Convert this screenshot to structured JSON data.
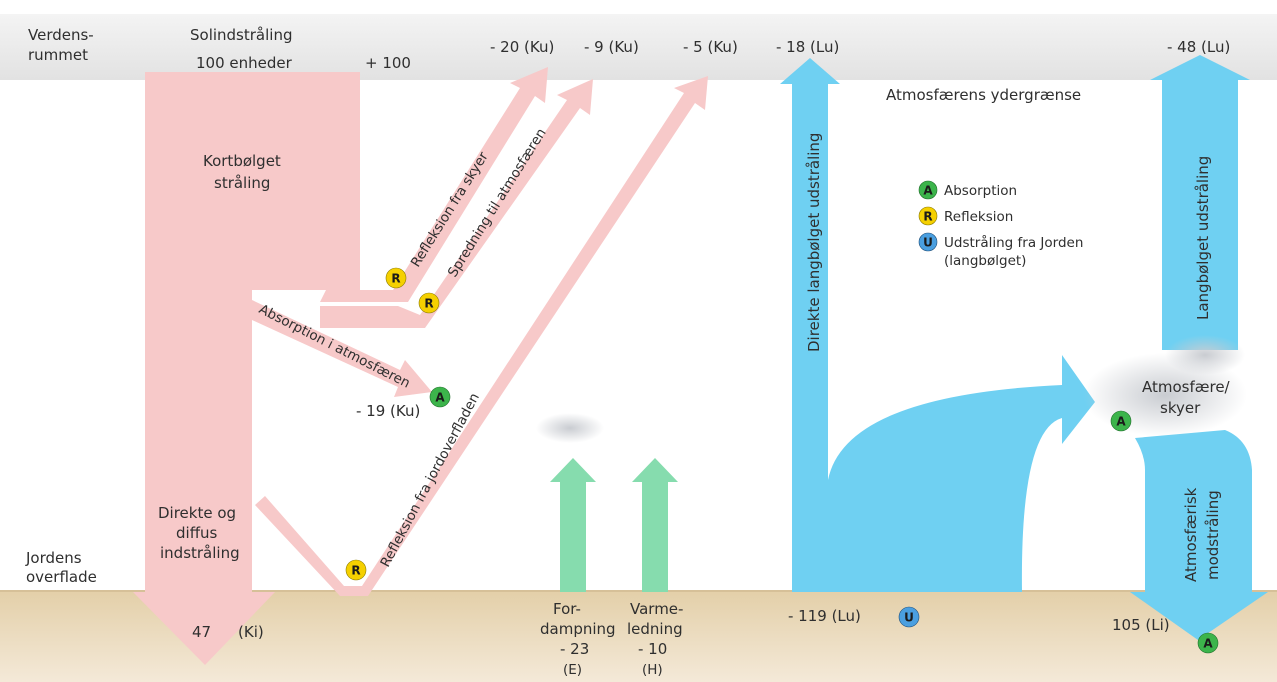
{
  "space_label": [
    "Verdens-",
    "rummet"
  ],
  "solar": {
    "title": "Solindstråling",
    "amount": "100 enheder",
    "plus": "+ 100"
  },
  "top_values": {
    "clouds": "- 20 (Ku)",
    "scatter": "- 9 (Ku)",
    "surface": "- 5 (Ku)",
    "direct_lw": "- 18 (Lu)",
    "atm_lw": "- 48 (Lu)"
  },
  "outer_boundary": "Atmosfærens ydergrænse",
  "shortwave": [
    "Kortbølget",
    "stråling"
  ],
  "direct_diffuse": [
    "Direkte og",
    "diffus",
    "indstråling"
  ],
  "ground_label": [
    "Jordens",
    "overflade"
  ],
  "ground_values": {
    "ki_value": "47",
    "ki_code": "(Ki)",
    "lu_total": "- 119 (Lu)",
    "li_value": "105 (Li)"
  },
  "flow_labels": {
    "cloud_reflection": "Refleksion fra skyer",
    "scattering": "Spredning til atmosfæren",
    "absorption": "Absorption i atmosfæren",
    "surface_reflection": "Refleksion fra jordoverfladen",
    "direct_longwave": "Direkte langbølget udstråling",
    "longwave_out": "Langbølget udstråling",
    "counter_radiation": [
      "Atmosfærisk",
      "modstråling"
    ],
    "atmosphere_clouds": [
      "Atmosfære/",
      "skyer"
    ]
  },
  "absorption_value": "- 19 (Ku)",
  "evaporation": {
    "label": [
      "For-",
      "dampning"
    ],
    "value": "- 23",
    "code": "(E)"
  },
  "conduction": {
    "label": [
      "Varme-",
      "ledning"
    ],
    "value": "- 10",
    "code": "(H)"
  },
  "legend": [
    {
      "letter": "A",
      "text": [
        "Absorption"
      ],
      "color": "#3cb44b"
    },
    {
      "letter": "R",
      "text": [
        "Refleksion"
      ],
      "color": "#f5d000"
    },
    {
      "letter": "U",
      "text": [
        "Udstråling fra Jorden",
        "(langbølget)"
      ],
      "color": "#4a9fe0"
    }
  ],
  "badge_letters": {
    "absorption": "A",
    "reflection": "R",
    "emission": "U"
  },
  "colors": {
    "shortwave": "#f7c9c9",
    "longwave": "#6fd0f2",
    "turbulent": "#86dcae",
    "ground": "#ead8b8",
    "space": "#ececec",
    "absorption": "#3cb44b",
    "reflection": "#f5d000",
    "emission": "#4a9fe0"
  }
}
